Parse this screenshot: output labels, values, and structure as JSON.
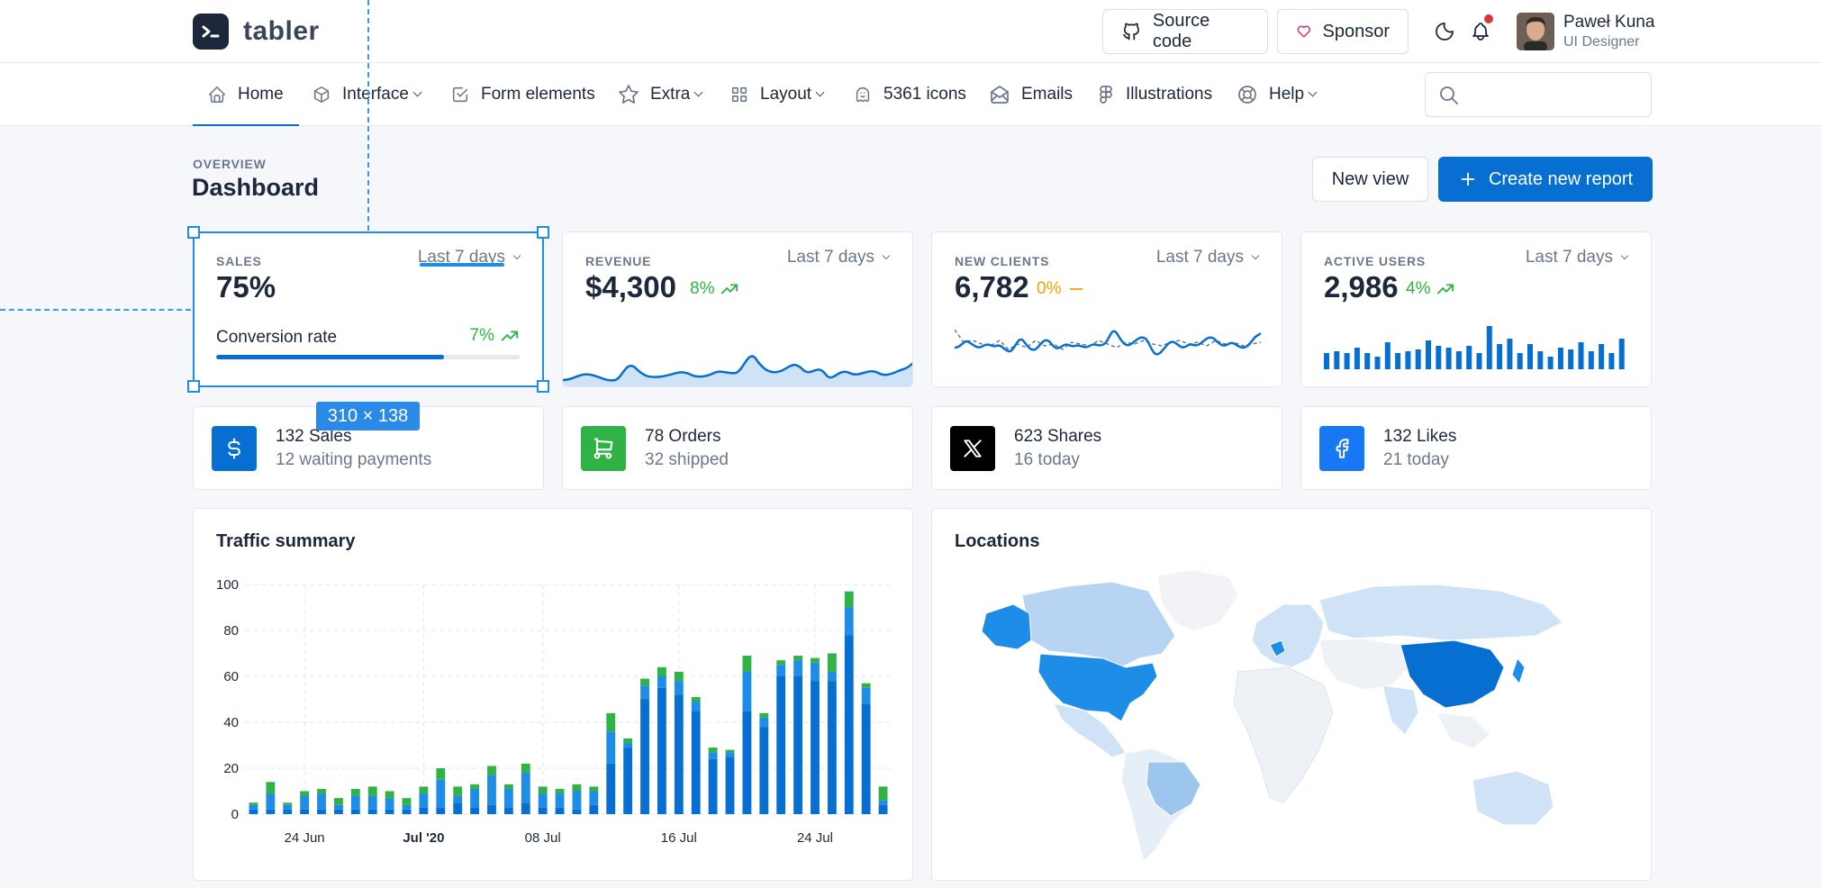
{
  "brand": {
    "name": "tabler"
  },
  "header": {
    "source_code_label": "Source code",
    "sponsor_label": "Sponsor",
    "user": {
      "name": "Paweł Kuna",
      "role": "UI Designer"
    }
  },
  "nav": {
    "items": [
      {
        "label": "Home",
        "icon": "home-icon",
        "dropdown": false,
        "active": true
      },
      {
        "label": "Interface",
        "icon": "package-icon",
        "dropdown": true,
        "active": false
      },
      {
        "label": "Form elements",
        "icon": "checkbox-icon",
        "dropdown": false,
        "active": false
      },
      {
        "label": "Extra",
        "icon": "star-icon",
        "dropdown": true,
        "active": false
      },
      {
        "label": "Layout",
        "icon": "layout-grid-icon",
        "dropdown": true,
        "active": false
      },
      {
        "label": "5361 icons",
        "icon": "ghost-icon",
        "dropdown": false,
        "active": false
      },
      {
        "label": "Emails",
        "icon": "mail-icon",
        "dropdown": false,
        "active": false
      },
      {
        "label": "Illustrations",
        "icon": "figma-icon",
        "dropdown": false,
        "active": false
      },
      {
        "label": "Help",
        "icon": "lifebuoy-icon",
        "dropdown": true,
        "active": false
      }
    ],
    "search_placeholder": ""
  },
  "page": {
    "pretitle": "OVERVIEW",
    "title": "Dashboard",
    "new_view_label": "New view",
    "create_report_label": "Create new report"
  },
  "stats": {
    "sales": {
      "label": "SALES",
      "period": "Last 7 days",
      "value": "75%",
      "conversion_label": "Conversion rate",
      "conversion_change": "7%",
      "progress_fraction": 0.75
    },
    "revenue": {
      "label": "REVENUE",
      "period": "Last 7 days",
      "value": "$4,300",
      "change": "8%"
    },
    "new_clients": {
      "label": "NEW CLIENTS",
      "period": "Last 7 days",
      "value": "6,782",
      "change": "0%"
    },
    "active_users": {
      "label": "ACTIVE USERS",
      "period": "Last 7 days",
      "value": "2,986",
      "change": "4%"
    }
  },
  "mini_cards": [
    {
      "title": "132 Sales",
      "subtitle": "12 waiting payments",
      "icon": "currency-dollar-icon",
      "color": "#066fd1"
    },
    {
      "title": "78 Orders",
      "subtitle": "32 shipped",
      "icon": "shopping-cart-icon",
      "color": "#2fb344"
    },
    {
      "title": "623 Shares",
      "subtitle": "16 today",
      "icon": "x-logo-icon",
      "color": "#000000"
    },
    {
      "title": "132 Likes",
      "subtitle": "21 today",
      "icon": "facebook-logo-icon",
      "color": "#1877f2"
    }
  ],
  "traffic": {
    "title": "Traffic summary",
    "chart_data": {
      "type": "bar",
      "stacked": true,
      "ylim": [
        0,
        100
      ],
      "yticks": [
        0,
        20,
        40,
        60,
        80,
        100
      ],
      "xtick_labels": [
        "24 Jun",
        "Jul '20",
        "08 Jul",
        "16 Jul",
        "24 Jul"
      ],
      "xtick_indices": [
        3,
        10,
        17,
        25,
        33
      ],
      "grid": true,
      "series": [
        {
          "color": "#066fd1",
          "values": [
            2,
            2,
            2,
            2,
            2,
            2,
            2,
            2,
            2,
            2,
            3,
            3,
            5,
            3,
            4,
            3,
            5,
            3,
            3,
            2,
            4,
            22,
            29,
            50,
            55,
            52,
            45,
            24,
            25,
            45,
            38,
            60,
            60,
            58,
            58,
            78,
            48,
            4
          ]
        },
        {
          "color": "#1e8de8",
          "values": [
            2,
            7,
            2,
            6,
            7,
            2,
            6,
            6,
            5,
            2,
            6,
            12,
            3,
            8,
            13,
            8,
            13,
            6,
            6,
            8,
            6,
            14,
            2,
            6,
            5,
            6,
            4,
            3,
            2,
            17,
            4,
            5,
            7,
            8,
            4,
            12,
            7,
            2
          ]
        },
        {
          "color": "#2fb344",
          "values": [
            1,
            5,
            1,
            2,
            2,
            3,
            3,
            4,
            3,
            3,
            3,
            5,
            4,
            2,
            4,
            2,
            4,
            3,
            2,
            3,
            2,
            8,
            2,
            3,
            4,
            4,
            2,
            2,
            1,
            7,
            2,
            2,
            2,
            2,
            8,
            7,
            2,
            6
          ]
        }
      ]
    }
  },
  "locations": {
    "title": "Locations"
  },
  "overlay": {
    "size_label": "310 × 138"
  }
}
